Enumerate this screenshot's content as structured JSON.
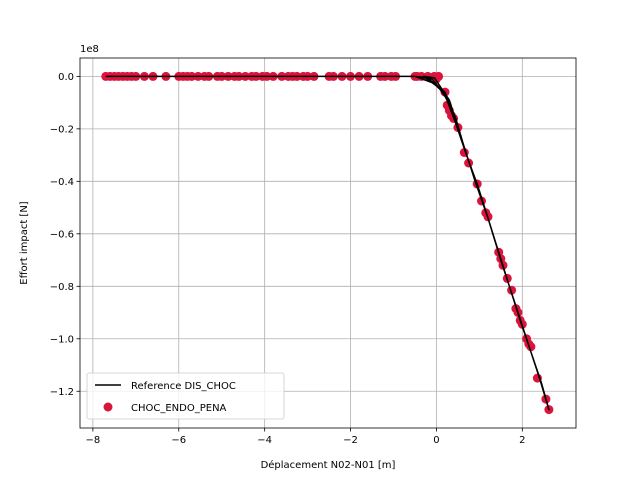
{
  "chart_data": {
    "type": "scatter",
    "title": "",
    "xlabel": "Déplacement N02-N01 [m]",
    "ylabel": "Effort impact [N]",
    "y_offset_label": "1e8",
    "y_multiplier": 100000000,
    "xlim": [
      -8.3,
      3.25
    ],
    "ylim": [
      -1.34,
      0.07
    ],
    "grid": true,
    "legend_placement": "lower-left",
    "x_ticks": [
      {
        "value": -8,
        "label": "−8"
      },
      {
        "value": -6,
        "label": "−6"
      },
      {
        "value": -4,
        "label": "−4"
      },
      {
        "value": -2,
        "label": "−2"
      },
      {
        "value": 0,
        "label": "0"
      },
      {
        "value": 2,
        "label": "2"
      }
    ],
    "y_ticks": [
      {
        "value": 0.0,
        "label": "0.0"
      },
      {
        "value": -0.2,
        "label": "−0.2"
      },
      {
        "value": -0.4,
        "label": "−0.4"
      },
      {
        "value": -0.6,
        "label": "−0.6"
      },
      {
        "value": -0.8,
        "label": "−0.8"
      },
      {
        "value": -1.0,
        "label": "−1.0"
      },
      {
        "value": -1.2,
        "label": "−1.2"
      }
    ],
    "series": [
      {
        "name": "Reference DIS_CHOC",
        "kind": "line",
        "color": "#000000",
        "points": [
          [
            -7.7,
            0.0
          ],
          [
            -6.0,
            0.0
          ],
          [
            -4.0,
            0.0
          ],
          [
            -2.0,
            0.0
          ],
          [
            -0.5,
            0.0
          ],
          [
            0.0,
            -0.03
          ],
          [
            0.3,
            -0.1
          ],
          [
            0.5,
            -0.2
          ],
          [
            0.7,
            -0.3
          ],
          [
            0.95,
            -0.41
          ],
          [
            1.2,
            -0.54
          ],
          [
            1.45,
            -0.67
          ],
          [
            1.7,
            -0.8
          ],
          [
            1.95,
            -0.93
          ],
          [
            2.2,
            -1.05
          ],
          [
            2.45,
            -1.17
          ],
          [
            2.62,
            -1.27
          ],
          [
            2.62,
            -1.27
          ],
          [
            2.4,
            -1.15
          ],
          [
            2.1,
            -1.0
          ],
          [
            1.8,
            -0.85
          ],
          [
            1.5,
            -0.7
          ],
          [
            1.2,
            -0.54
          ],
          [
            0.9,
            -0.4
          ],
          [
            0.65,
            -0.27
          ],
          [
            0.4,
            -0.14
          ],
          [
            0.15,
            -0.06
          ],
          [
            -0.2,
            -0.005
          ],
          [
            -0.5,
            0.0
          ],
          [
            -1.0,
            0.0
          ],
          [
            -0.5,
            0.0
          ],
          [
            -0.1,
            -0.01
          ],
          [
            0.2,
            -0.07
          ],
          [
            0.45,
            -0.18
          ],
          [
            0.7,
            -0.3
          ],
          [
            0.45,
            -0.16
          ],
          [
            0.2,
            -0.06
          ],
          [
            -0.3,
            0.0
          ],
          [
            -0.05,
            -0.005
          ],
          [
            0.3,
            -0.09
          ],
          [
            0.55,
            -0.22
          ],
          [
            0.7,
            -0.3
          ]
        ]
      },
      {
        "name": "CHOC_ENDO_PENA",
        "kind": "scatter",
        "color": "#dc143c",
        "points": [
          [
            -7.7,
            0.0
          ],
          [
            -7.6,
            0.0
          ],
          [
            -7.5,
            0.0
          ],
          [
            -7.4,
            0.0
          ],
          [
            -7.3,
            0.0
          ],
          [
            -7.2,
            0.0
          ],
          [
            -7.1,
            0.0
          ],
          [
            -7.0,
            0.0
          ],
          [
            -6.8,
            0.0
          ],
          [
            -6.6,
            0.0
          ],
          [
            -6.3,
            0.0
          ],
          [
            -6.0,
            0.0
          ],
          [
            -5.9,
            0.0
          ],
          [
            -5.8,
            0.0
          ],
          [
            -5.7,
            0.0
          ],
          [
            -5.55,
            0.0
          ],
          [
            -5.4,
            0.0
          ],
          [
            -5.3,
            0.0
          ],
          [
            -5.1,
            0.0
          ],
          [
            -5.0,
            0.0
          ],
          [
            -4.85,
            0.0
          ],
          [
            -4.7,
            0.0
          ],
          [
            -4.6,
            0.0
          ],
          [
            -4.45,
            0.0
          ],
          [
            -4.3,
            0.0
          ],
          [
            -4.2,
            0.0
          ],
          [
            -4.05,
            0.0
          ],
          [
            -3.95,
            0.0
          ],
          [
            -3.8,
            0.0
          ],
          [
            -3.6,
            0.0
          ],
          [
            -3.45,
            0.0
          ],
          [
            -3.35,
            0.0
          ],
          [
            -3.25,
            0.0
          ],
          [
            -3.1,
            0.0
          ],
          [
            -3.0,
            0.0
          ],
          [
            -2.85,
            0.0
          ],
          [
            -2.5,
            0.0
          ],
          [
            -2.4,
            0.0
          ],
          [
            -2.2,
            0.0
          ],
          [
            -2.0,
            0.0
          ],
          [
            -1.8,
            0.0
          ],
          [
            -1.6,
            0.0
          ],
          [
            -1.3,
            0.0
          ],
          [
            -1.2,
            0.0
          ],
          [
            -1.05,
            0.0
          ],
          [
            -0.95,
            0.0
          ],
          [
            -0.5,
            0.0
          ],
          [
            -0.45,
            0.0
          ],
          [
            -0.35,
            0.0
          ],
          [
            -0.2,
            0.0
          ],
          [
            -0.05,
            0.0
          ],
          [
            0.05,
            0.0
          ],
          [
            0.0,
            -0.01
          ],
          [
            0.2,
            -0.06
          ],
          [
            0.25,
            -0.11
          ],
          [
            0.3,
            -0.13
          ],
          [
            0.35,
            -0.15
          ],
          [
            0.4,
            -0.16
          ],
          [
            0.5,
            -0.195
          ],
          [
            0.65,
            -0.29
          ],
          [
            0.75,
            -0.33
          ],
          [
            0.95,
            -0.41
          ],
          [
            1.05,
            -0.475
          ],
          [
            1.15,
            -0.52
          ],
          [
            1.2,
            -0.535
          ],
          [
            1.45,
            -0.67
          ],
          [
            1.5,
            -0.695
          ],
          [
            1.55,
            -0.72
          ],
          [
            1.65,
            -0.77
          ],
          [
            1.75,
            -0.815
          ],
          [
            1.85,
            -0.885
          ],
          [
            1.9,
            -0.9
          ],
          [
            1.95,
            -0.93
          ],
          [
            2.0,
            -0.945
          ],
          [
            2.1,
            -1.0
          ],
          [
            2.15,
            -1.02
          ],
          [
            2.2,
            -1.03
          ],
          [
            2.35,
            -1.15
          ],
          [
            2.55,
            -1.23
          ],
          [
            2.62,
            -1.27
          ]
        ]
      }
    ]
  }
}
